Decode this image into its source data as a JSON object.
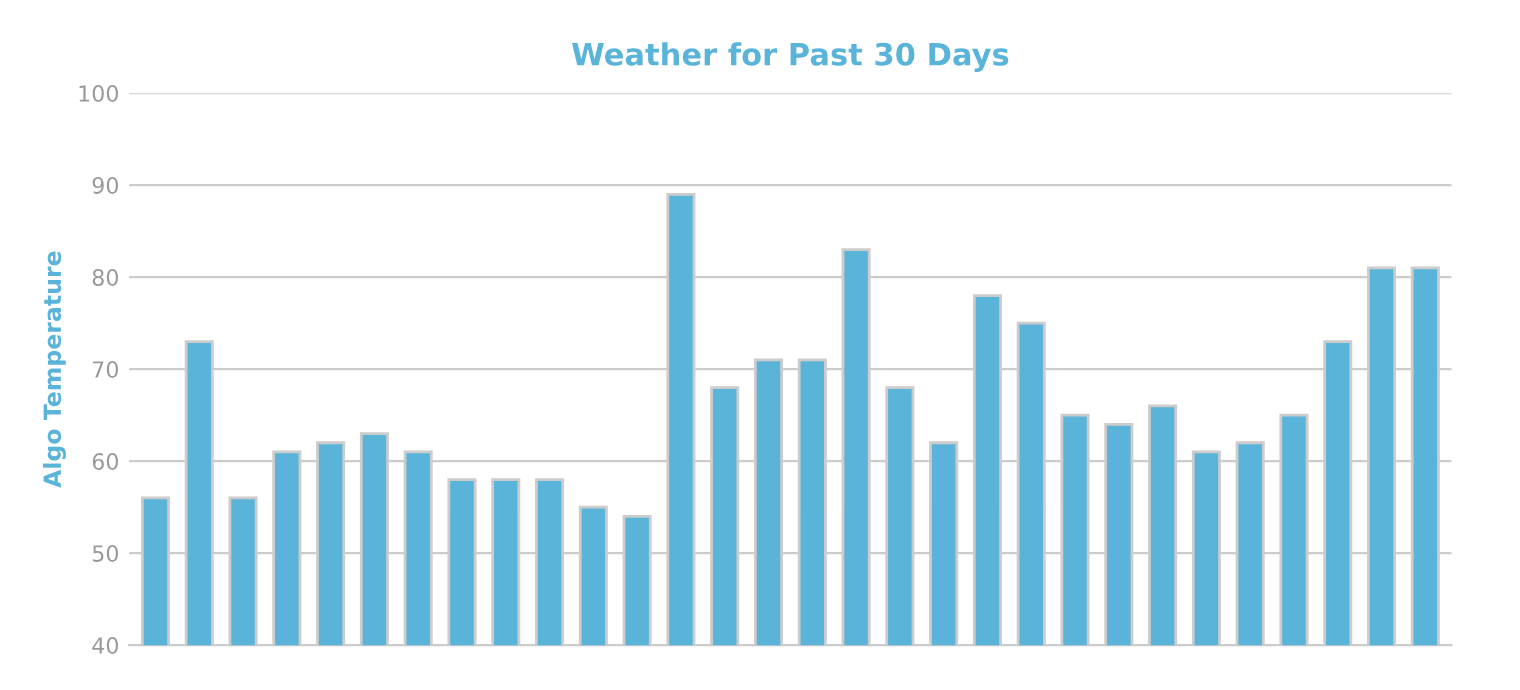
{
  "chart_data": {
    "type": "bar",
    "title": "Weather for Past 30 Days",
    "ylabel": "Algo Temperature",
    "categories": [
      null,
      null,
      null,
      null,
      null,
      null,
      null,
      null,
      null,
      null,
      null,
      null,
      null,
      null,
      null,
      null,
      null,
      null,
      null,
      null,
      null,
      null,
      null,
      null,
      null,
      null,
      null,
      null,
      null,
      null
    ],
    "values": [
      56,
      73,
      56,
      61,
      62,
      63,
      61,
      58,
      58,
      58,
      55,
      54,
      89,
      68,
      71,
      71,
      83,
      68,
      62,
      78,
      75,
      65,
      64,
      66,
      61,
      62,
      65,
      73,
      81,
      81
    ],
    "color": "#5ab4d9",
    "ylim": [
      40,
      100
    ],
    "yticks": [
      40,
      50,
      60,
      70,
      80,
      90,
      100
    ],
    "grid": "y",
    "legend": false
  }
}
